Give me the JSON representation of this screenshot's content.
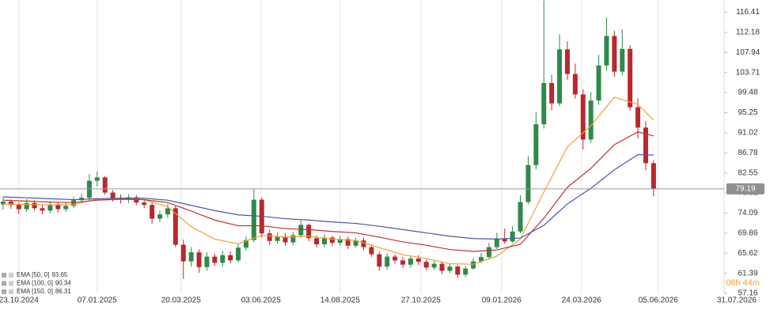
{
  "chart_data": {
    "type": "candlestick",
    "xlim": [
      -0.4,
      92
    ],
    "ylim": [
      57.16,
      119.0
    ],
    "xticks": [
      {
        "value": 2,
        "label": "23.10.2024"
      },
      {
        "value": 12,
        "label": "07.01.2025"
      },
      {
        "value": 22.7,
        "label": "20.03.2025"
      },
      {
        "value": 32.9,
        "label": "03.06.2025"
      },
      {
        "value": 43,
        "label": "14.08.2025"
      },
      {
        "value": 53.3,
        "label": "27.10.2025"
      },
      {
        "value": 63.6,
        "label": "09.01.2026"
      },
      {
        "value": 73.8,
        "label": "24.03.2026"
      },
      {
        "value": 83.6,
        "label": "05.06.2026"
      },
      {
        "value": 93.6,
        "label": "31.07.2026"
      }
    ],
    "yticks": [
      116.41,
      112.18,
      107.94,
      103.71,
      99.48,
      95.25,
      91.02,
      86.78,
      82.55,
      78.32,
      74.09,
      69.86,
      65.62,
      61.39,
      57.16
    ],
    "up_color": "#2f8a4a",
    "down_color": "#b8282e",
    "open": [
      75.9,
      76.5,
      75.8,
      74.9,
      76.2,
      75.1,
      74.6,
      75.8,
      74.9,
      75.6,
      76.8,
      77.3,
      80.9,
      81.6,
      78.4,
      77.2,
      76.9,
      77.4,
      76.3,
      75.8,
      72.9,
      73.8,
      75.1,
      67.4,
      63.9,
      65.8,
      62.7,
      64.9,
      63.6,
      65.2,
      64.1,
      66.8,
      68.4,
      76.9,
      69.8,
      68.2,
      69.1,
      67.9,
      69.4,
      71.6,
      68.8,
      67.5,
      68.9,
      67.8,
      68.6,
      67.2,
      68.3,
      66.9,
      65.4,
      62.8,
      64.9,
      64.1,
      63.2,
      64.5,
      63.8,
      62.6,
      63.4,
      61.9,
      62.8,
      61.1,
      62.4,
      63.9,
      64.8,
      66.9,
      68.7,
      68.1,
      70.2,
      76.4,
      84.2,
      92.8,
      101.5,
      97.2,
      108.6,
      103.4,
      99.1,
      89.6,
      97.8,
      105.2,
      111.4,
      103.9,
      108.7,
      96.4,
      92.1,
      84.6
    ],
    "high": [
      77.4,
      77.0,
      76.3,
      77.0,
      76.8,
      75.9,
      76.6,
      76.4,
      76.3,
      77.5,
      78.2,
      82.3,
      82.9,
      81.9,
      78.9,
      78.0,
      78.1,
      77.9,
      76.9,
      76.4,
      74.6,
      76.0,
      75.6,
      68.5,
      66.9,
      66.4,
      65.8,
      65.5,
      66.1,
      66.0,
      67.5,
      69.2,
      79.2,
      77.4,
      70.6,
      69.9,
      69.8,
      70.1,
      72.8,
      71.9,
      69.4,
      69.6,
      69.3,
      69.2,
      69.1,
      68.9,
      68.9,
      67.5,
      65.9,
      65.6,
      65.4,
      64.8,
      65.1,
      65.2,
      64.3,
      64.1,
      63.9,
      63.4,
      63.2,
      62.9,
      64.6,
      65.7,
      67.8,
      69.9,
      70.8,
      71.3,
      77.8,
      86.1,
      95.4,
      118.9,
      103.2,
      111.8,
      110.3,
      105.6,
      100.2,
      99.6,
      107.4,
      115.3,
      112.5,
      112.8,
      109.5,
      98.3,
      93.4,
      85.2
    ],
    "low": [
      74.8,
      75.0,
      73.9,
      74.3,
      74.6,
      73.8,
      74.0,
      74.2,
      74.3,
      75.1,
      76.2,
      76.8,
      79.7,
      77.9,
      76.5,
      76.1,
      76.2,
      75.7,
      75.1,
      71.8,
      72.2,
      73.1,
      66.9,
      60.2,
      62.8,
      61.5,
      61.9,
      62.9,
      62.8,
      63.5,
      63.6,
      66.2,
      67.9,
      68.9,
      67.4,
      67.6,
      67.2,
      67.3,
      68.9,
      68.1,
      66.8,
      66.9,
      67.1,
      67.2,
      66.5,
      66.8,
      66.2,
      64.8,
      61.9,
      62.1,
      63.4,
      62.5,
      62.6,
      63.1,
      62.0,
      62.1,
      61.2,
      61.4,
      60.4,
      60.6,
      62.1,
      63.5,
      64.3,
      66.5,
      67.6,
      67.8,
      69.8,
      75.9,
      83.3,
      91.9,
      95.8,
      96.6,
      102.2,
      98.2,
      87.5,
      88.9,
      96.9,
      104.1,
      102.8,
      103.1,
      95.7,
      89.8,
      83.1,
      77.6
    ],
    "close": [
      76.5,
      75.8,
      74.9,
      76.2,
      75.1,
      74.6,
      75.8,
      74.9,
      75.6,
      76.8,
      77.3,
      80.9,
      81.6,
      78.4,
      77.2,
      76.9,
      77.4,
      76.3,
      75.8,
      72.9,
      73.8,
      75.1,
      67.4,
      63.9,
      65.8,
      62.7,
      64.9,
      63.6,
      65.2,
      64.1,
      66.8,
      68.4,
      76.9,
      69.8,
      68.2,
      69.1,
      67.9,
      69.4,
      71.6,
      68.8,
      67.5,
      68.9,
      67.8,
      68.6,
      67.2,
      68.3,
      66.9,
      65.4,
      62.8,
      64.9,
      64.1,
      63.2,
      64.5,
      63.8,
      62.6,
      63.4,
      61.9,
      62.8,
      61.1,
      62.4,
      63.9,
      64.8,
      66.9,
      68.7,
      68.1,
      70.2,
      76.4,
      84.2,
      92.8,
      101.5,
      97.2,
      108.6,
      103.4,
      99.1,
      89.6,
      97.8,
      105.2,
      111.4,
      103.9,
      108.7,
      96.4,
      92.1,
      84.6,
      79.19
    ],
    "series": [
      {
        "name": "EMA [50, 0]",
        "color": "#f0a030",
        "x": [
          0,
          3,
          6,
          9,
          12,
          15,
          18,
          21,
          24,
          27,
          30,
          33,
          36,
          39,
          42,
          45,
          48,
          51,
          54,
          57,
          60,
          63,
          66,
          69,
          72,
          75,
          78,
          81,
          83
        ],
        "values": [
          76.0,
          75.9,
          75.8,
          75.9,
          77.0,
          77.2,
          76.9,
          75.4,
          71.2,
          68.6,
          67.6,
          69.4,
          69.0,
          69.2,
          68.6,
          68.3,
          66.8,
          65.3,
          64.5,
          63.4,
          63.3,
          65.0,
          68.6,
          78.5,
          88.0,
          92.5,
          98.5,
          97.0,
          93.65
        ]
      },
      {
        "name": "EMA [100, 0]",
        "color": "#c0302e",
        "x": [
          0,
          3,
          6,
          9,
          12,
          15,
          18,
          21,
          24,
          27,
          30,
          33,
          36,
          39,
          42,
          45,
          48,
          51,
          54,
          57,
          60,
          63,
          66,
          69,
          72,
          75,
          78,
          81,
          83
        ],
        "values": [
          76.8,
          76.6,
          76.4,
          76.3,
          76.8,
          77.0,
          76.9,
          76.3,
          74.5,
          72.6,
          71.4,
          71.4,
          70.8,
          70.6,
          70.2,
          69.9,
          69.0,
          68.0,
          67.3,
          66.4,
          66.0,
          66.3,
          67.5,
          73.0,
          79.5,
          83.5,
          88.5,
          91.2,
          90.34
        ]
      },
      {
        "name": "EMA [150, 0]",
        "color": "#4a55a2",
        "x": [
          0,
          3,
          6,
          9,
          12,
          15,
          18,
          21,
          24,
          27,
          30,
          33,
          36,
          39,
          42,
          45,
          48,
          51,
          54,
          57,
          60,
          63,
          66,
          69,
          72,
          75,
          78,
          81,
          83
        ],
        "values": [
          77.5,
          77.3,
          77.1,
          76.9,
          77.1,
          77.2,
          77.2,
          76.8,
          75.7,
          74.6,
          73.7,
          73.4,
          72.9,
          72.6,
          72.2,
          71.9,
          71.3,
          70.6,
          69.9,
          69.2,
          68.7,
          68.6,
          68.8,
          71.5,
          76.0,
          79.3,
          83.2,
          86.4,
          86.31
        ]
      }
    ],
    "last_price": 79.19,
    "countdown": "08h 44m"
  }
}
